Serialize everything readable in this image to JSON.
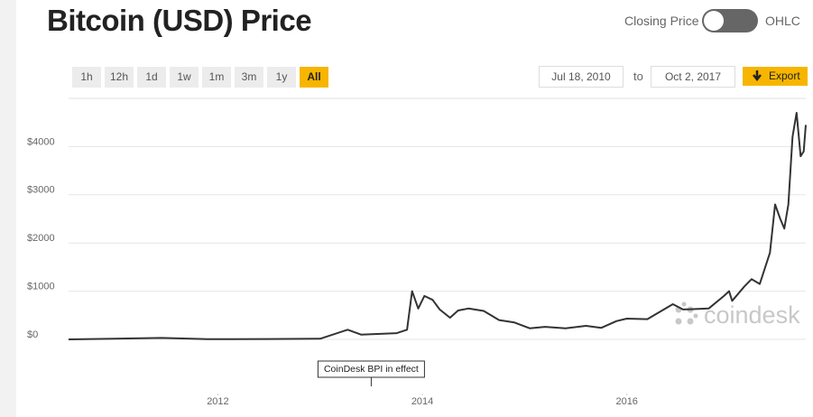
{
  "header": {
    "title": "Bitcoin (USD) Price",
    "toggle_left": "Closing Price",
    "toggle_right": "OHLC"
  },
  "controls": {
    "ranges": [
      {
        "label": "1h"
      },
      {
        "label": "12h"
      },
      {
        "label": "1d"
      },
      {
        "label": "1w"
      },
      {
        "label": "1m"
      },
      {
        "label": "3m"
      },
      {
        "label": "1y"
      },
      {
        "label": "All",
        "active": true
      }
    ],
    "from": "Jul 18, 2010",
    "to_label": "to",
    "to": "Oct 2, 2017",
    "export": "Export"
  },
  "chart_data": {
    "type": "line",
    "color": "#333333",
    "grid": true,
    "x": [
      2010.54,
      2011.45,
      2011.9,
      2012.5,
      2013.0,
      2013.27,
      2013.4,
      2013.75,
      2013.85,
      2013.9,
      2013.96,
      2014.02,
      2014.1,
      2014.17,
      2014.27,
      2014.35,
      2014.45,
      2014.6,
      2014.75,
      2014.9,
      2015.05,
      2015.2,
      2015.4,
      2015.6,
      2015.75,
      2015.9,
      2016.0,
      2016.2,
      2016.45,
      2016.55,
      2016.8,
      2016.95,
      2017.0,
      2017.03,
      2017.15,
      2017.22,
      2017.3,
      2017.4,
      2017.45,
      2017.5,
      2017.54,
      2017.58,
      2017.62,
      2017.66,
      2017.7,
      2017.73,
      2017.75
    ],
    "values": [
      0,
      30,
      3,
      7,
      13,
      200,
      100,
      130,
      200,
      1000,
      640,
      900,
      820,
      620,
      450,
      600,
      640,
      590,
      400,
      350,
      230,
      260,
      230,
      280,
      240,
      380,
      430,
      420,
      730,
      620,
      640,
      900,
      1000,
      800,
      1100,
      1250,
      1150,
      1800,
      2800,
      2500,
      2300,
      2800,
      4200,
      4700,
      3800,
      3900,
      4450
    ],
    "xlim": [
      2010.54,
      2017.75
    ],
    "ylim": [
      0,
      5000
    ],
    "xticks": [
      2012,
      2014,
      2016
    ],
    "yticks": [
      {
        "value": 0,
        "label": "$0"
      },
      {
        "value": 1000,
        "label": "$1000"
      },
      {
        "value": 2000,
        "label": "$2000"
      },
      {
        "value": 3000,
        "label": "$3000"
      },
      {
        "value": 4000,
        "label": "$4000"
      }
    ],
    "annotation": {
      "text": "CoinDesk BPI in effect",
      "x": 2013.5
    },
    "watermark": "coindesk"
  }
}
